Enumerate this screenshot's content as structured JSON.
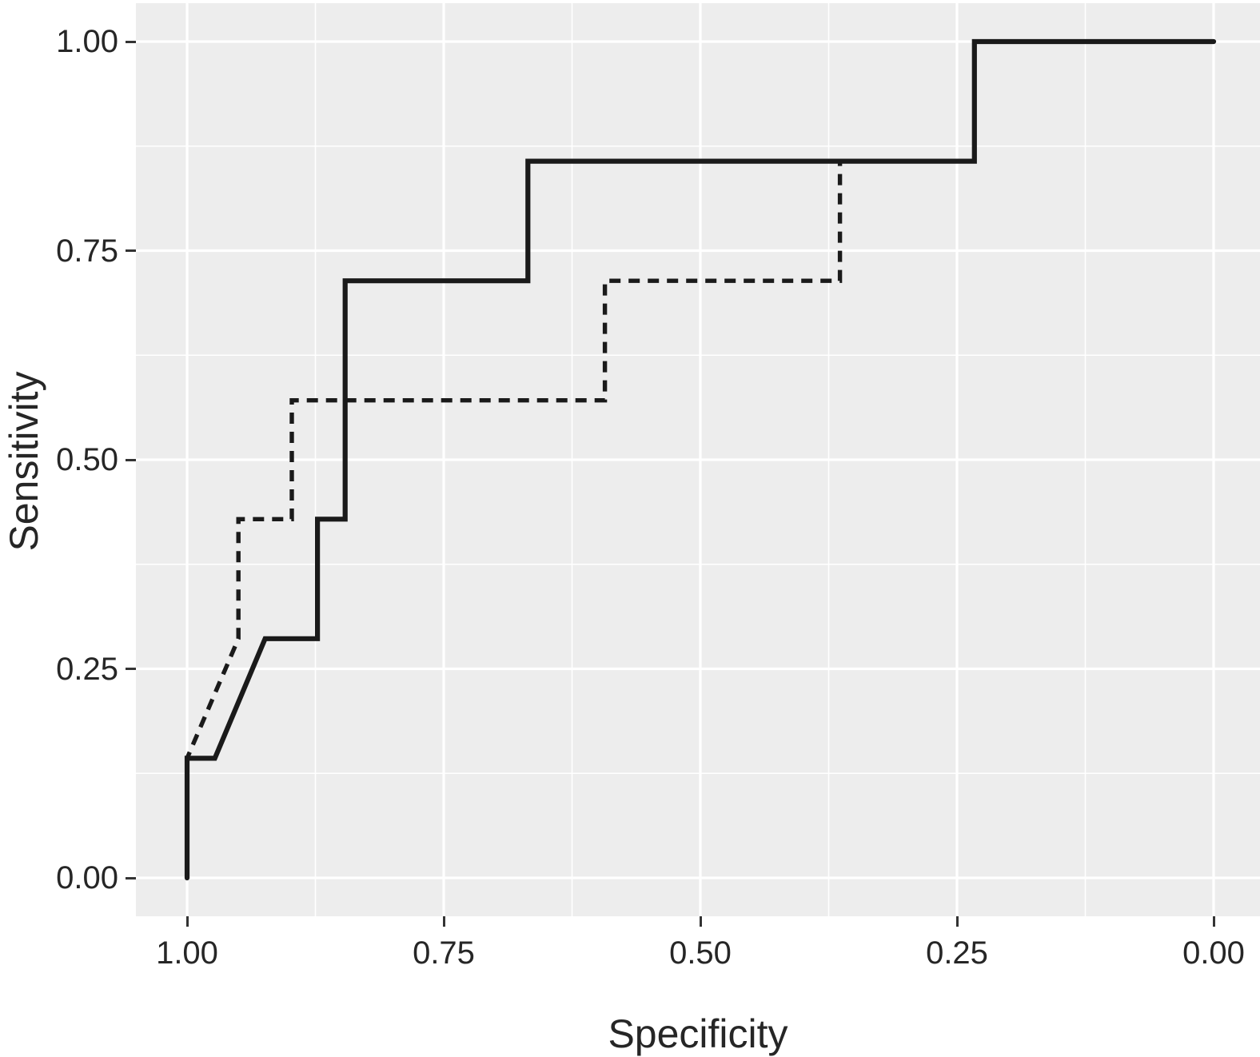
{
  "figure": {
    "background": "#ffffff",
    "panel_background": "#EDEDED",
    "text_color": "#262626",
    "tick_color": "#333333"
  },
  "chart_data": {
    "type": "line",
    "subtype": "roc-step-curves",
    "title": "",
    "xlabel": "Specificity",
    "ylabel": "Sensitivity",
    "x_axis_reversed": true,
    "xlim": [
      1.0,
      0.0
    ],
    "ylim": [
      0.0,
      1.0
    ],
    "x_ticks": [
      "1.00",
      "0.75",
      "0.50",
      "0.25",
      "0.00"
    ],
    "y_ticks": [
      "0.00",
      "0.25",
      "0.50",
      "0.75",
      "1.00"
    ],
    "grid": {
      "major": [
        0.0,
        0.25,
        0.5,
        0.75,
        1.0
      ],
      "minor": [
        0.125,
        0.375,
        0.625,
        0.875
      ],
      "color": "#ffffff",
      "background": "#EDEDED",
      "legend": "none"
    },
    "series": [
      {
        "name": "dashed-roc-curve",
        "style": "dashed",
        "color": "#1a1a1a",
        "points": [
          [
            1.0,
            0.0
          ],
          [
            1.0,
            0.143
          ],
          [
            0.95,
            0.286
          ],
          [
            0.95,
            0.429
          ],
          [
            0.898,
            0.429
          ],
          [
            0.898,
            0.571
          ],
          [
            0.593,
            0.571
          ],
          [
            0.593,
            0.714
          ],
          [
            0.364,
            0.714
          ],
          [
            0.364,
            0.857
          ],
          [
            0.233,
            0.857
          ],
          [
            0.233,
            1.0
          ],
          [
            0.0,
            1.0
          ]
        ]
      },
      {
        "name": "solid-roc-curve",
        "style": "solid",
        "color": "#1a1a1a",
        "points": [
          [
            1.0,
            0.0
          ],
          [
            1.0,
            0.143
          ],
          [
            0.973,
            0.143
          ],
          [
            0.924,
            0.286
          ],
          [
            0.873,
            0.286
          ],
          [
            0.873,
            0.429
          ],
          [
            0.846,
            0.429
          ],
          [
            0.846,
            0.714
          ],
          [
            0.668,
            0.714
          ],
          [
            0.668,
            0.857
          ],
          [
            0.233,
            0.857
          ],
          [
            0.233,
            1.0
          ],
          [
            0.0,
            1.0
          ]
        ]
      }
    ]
  }
}
